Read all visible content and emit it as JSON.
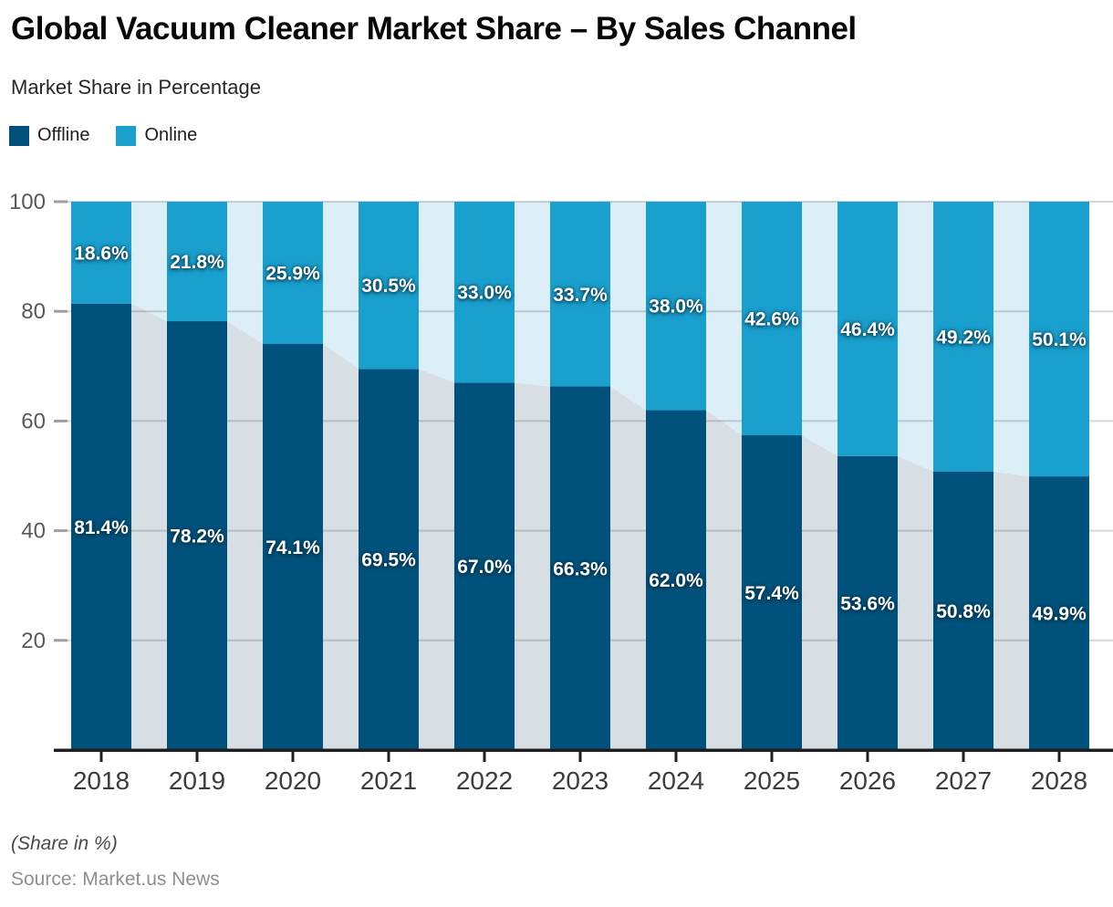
{
  "title": "Global Vacuum Cleaner Market Share – By Sales Channel",
  "subtitle": "Market Share in Percentage",
  "legend": [
    {
      "label": "Offline",
      "color": "#00527c"
    },
    {
      "label": "Online",
      "color": "#1aa0ce"
    }
  ],
  "footer": {
    "note": "(Share in %)",
    "source": "Source: Market.us News"
  },
  "chart_data": {
    "type": "bar",
    "stacked": true,
    "title": "Global Vacuum Cleaner Market Share – By Sales Channel",
    "subtitle": "Market Share in Percentage",
    "categories": [
      "2018",
      "2019",
      "2020",
      "2021",
      "2022",
      "2023",
      "2024",
      "2025",
      "2026",
      "2027",
      "2028"
    ],
    "series": [
      {
        "name": "Offline",
        "color": "#00527c",
        "ghost_color": "#d8dfe4",
        "values": [
          81.4,
          78.2,
          74.1,
          69.5,
          67.0,
          66.3,
          62.0,
          57.4,
          53.6,
          50.8,
          49.9
        ]
      },
      {
        "name": "Online",
        "color": "#1aa0ce",
        "ghost_color": "#dceef8",
        "values": [
          18.6,
          21.8,
          25.9,
          30.5,
          33.0,
          33.7,
          38.0,
          42.6,
          46.4,
          49.2,
          50.1
        ]
      }
    ],
    "value_suffix": "%",
    "value_decimals": 1,
    "ylim": [
      0,
      100
    ],
    "yticks": [
      20,
      40,
      60,
      80,
      100
    ],
    "grid": true,
    "grid_color": "rgba(0,0,0,0.16)",
    "axis_line_color": "#1f1f1f",
    "legend_position": "top-left",
    "background_area": "ghost stacked area of same data behind bars"
  }
}
